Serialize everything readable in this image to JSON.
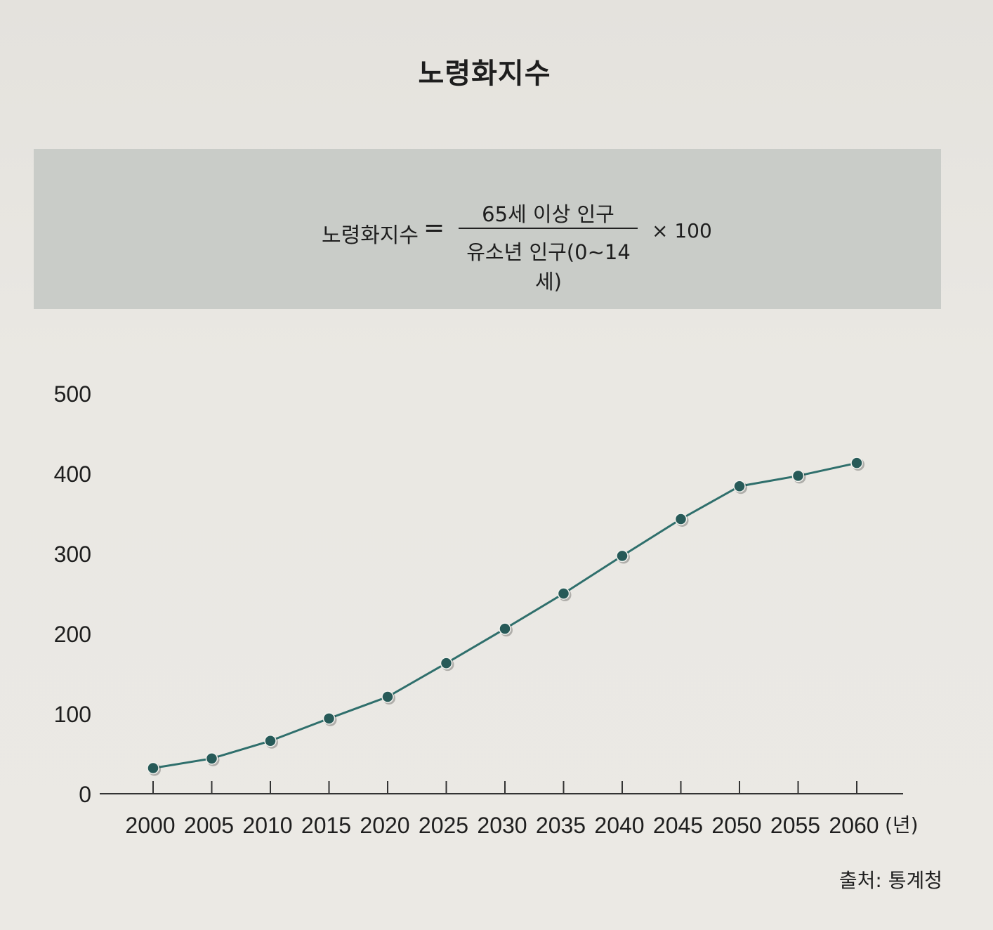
{
  "title": "노령화지수",
  "formula": {
    "lhs": "노령화지수",
    "equals": "=",
    "numerator": "65세 이상 인구",
    "denominator": "유소년 인구(0~14세)",
    "multiplier": "× 100"
  },
  "source": "출처: 통계청",
  "colors": {
    "line": "#2f6f6c",
    "marker": "#275a58",
    "axis": "#333333"
  },
  "chart_data": {
    "type": "line",
    "x": [
      2000,
      2005,
      2010,
      2015,
      2020,
      2025,
      2030,
      2035,
      2040,
      2045,
      2050,
      2055,
      2060
    ],
    "x_tick_labels": [
      "2000",
      "2005",
      "2010",
      "2015",
      "2020",
      "2025",
      "2030",
      "2035",
      "2040",
      "2045",
      "2050",
      "2055",
      "2060"
    ],
    "x_unit_label": "(년)",
    "y_ticks": [
      0,
      100,
      200,
      300,
      400,
      500
    ],
    "ylim": [
      0,
      500
    ],
    "series": [
      {
        "values": [
          32,
          44,
          66,
          94,
          121,
          163,
          206,
          250,
          297,
          343,
          384,
          397,
          413
        ]
      }
    ],
    "grid": false,
    "legend": "none"
  }
}
